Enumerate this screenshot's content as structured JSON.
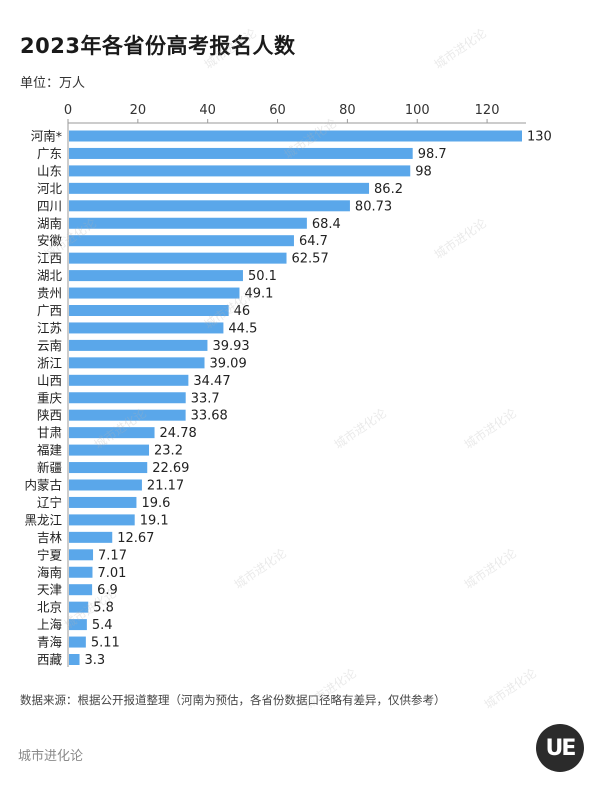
{
  "header": {
    "title": "2023年各省份高考报名人数",
    "unit": "单位：万人"
  },
  "footer": {
    "source": "数据来源：根据公开报道整理（河南为预估，各省份数据口径略有差异，仅供参考）",
    "brand": "城市进化论",
    "logo_text": "UE",
    "watermark": "城市进化论"
  },
  "colors": {
    "bar": "#5aa7ea",
    "axis": "#9a9a9a"
  },
  "chart_data": {
    "type": "bar",
    "orientation": "horizontal",
    "title": "2023年各省份高考报名人数",
    "xlim": [
      0,
      130
    ],
    "xticks": [
      0,
      20,
      40,
      60,
      80,
      100,
      120
    ],
    "categories": [
      "河南*",
      "广东",
      "山东",
      "河北",
      "四川",
      "湖南",
      "安徽",
      "江西",
      "湖北",
      "贵州",
      "广西",
      "江苏",
      "云南",
      "浙江",
      "山西",
      "重庆",
      "陕西",
      "甘肃",
      "福建",
      "新疆",
      "内蒙古",
      "辽宁",
      "黑龙江",
      "吉林",
      "宁夏",
      "海南",
      "天津",
      "北京",
      "上海",
      "青海",
      "西藏"
    ],
    "values": [
      130,
      98.7,
      98,
      86.2,
      80.73,
      68.4,
      64.7,
      62.57,
      50.1,
      49.1,
      46,
      44.5,
      39.93,
      39.09,
      34.47,
      33.7,
      33.68,
      24.78,
      23.2,
      22.69,
      21.17,
      19.6,
      19.1,
      12.67,
      7.17,
      7.01,
      6.9,
      5.8,
      5.4,
      5.11,
      3.3
    ],
    "value_labels": [
      "130",
      "98.7",
      "98",
      "86.2",
      "80.73",
      "68.4",
      "64.7",
      "62.57",
      "50.1",
      "49.1",
      "46",
      "44.5",
      "39.93",
      "39.09",
      "34.47",
      "33.7",
      "33.68",
      "24.78",
      "23.2",
      "22.69",
      "21.17",
      "19.6",
      "19.1",
      "12.67",
      "7.17",
      "7.01",
      "6.9",
      "5.8",
      "5.4",
      "5.11",
      "3.3"
    ],
    "grid": false,
    "legend": "none"
  }
}
